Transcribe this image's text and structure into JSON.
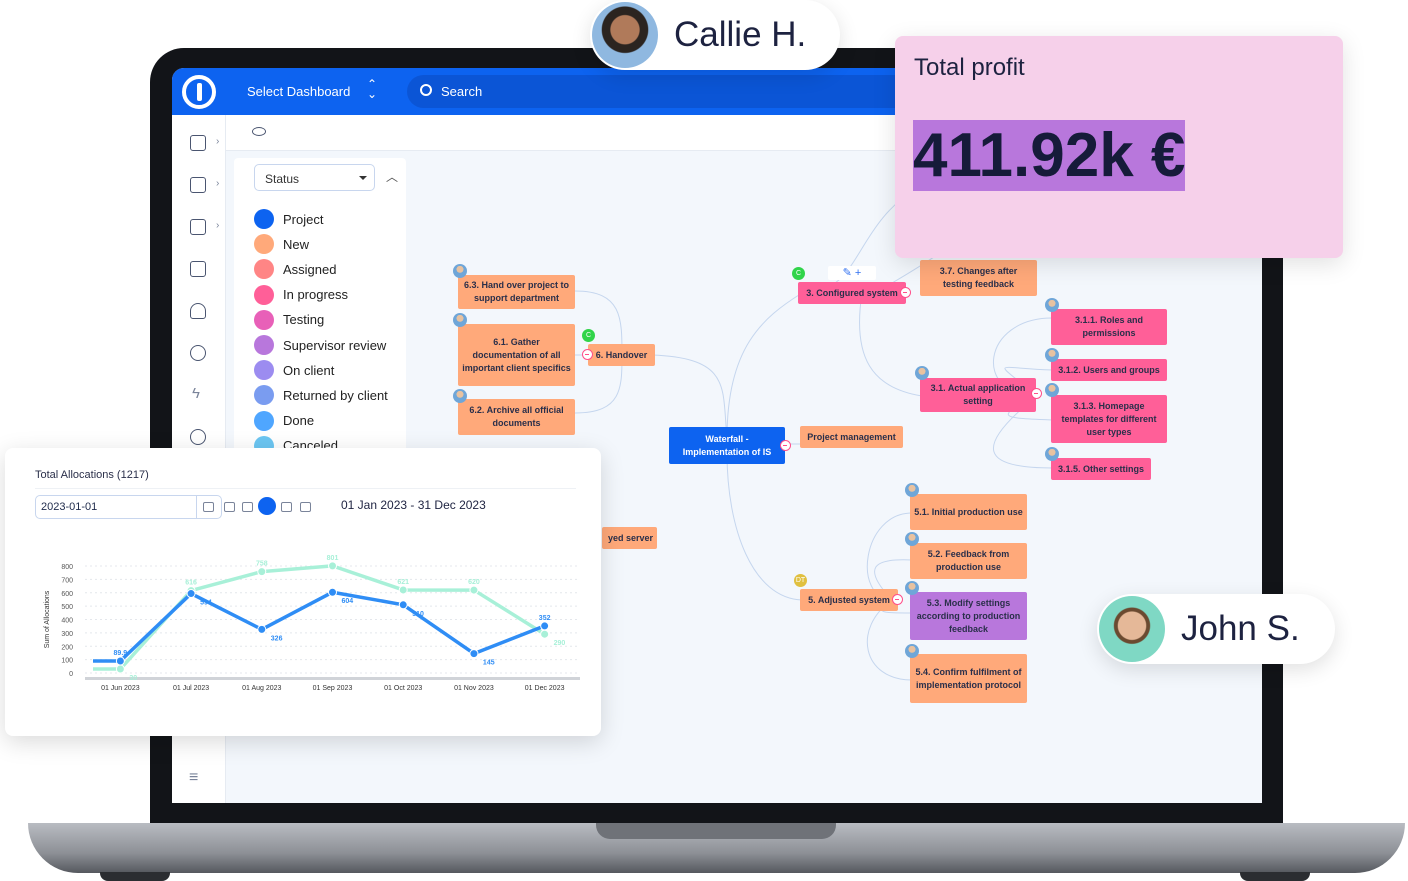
{
  "header": {
    "select_dashboard": "Select Dashboard",
    "search_placeholder": "Search"
  },
  "filter": {
    "select_value": "Status",
    "statuses": [
      {
        "label": "Project",
        "color": "#0d63f0"
      },
      {
        "label": "New",
        "color": "#ffa97a"
      },
      {
        "label": "Assigned",
        "color": "#ff8585"
      },
      {
        "label": "In progress",
        "color": "#ff5f98"
      },
      {
        "label": "Testing",
        "color": "#e860b8"
      },
      {
        "label": "Supervisor review",
        "color": "#b877dc"
      },
      {
        "label": "On client",
        "color": "#9c8cf0"
      },
      {
        "label": "Returned by client",
        "color": "#7a9cf0"
      },
      {
        "label": "Done",
        "color": "#4fa6ff"
      },
      {
        "label": "Canceled",
        "color": "#6cc6f2"
      }
    ]
  },
  "mindmap": {
    "root": "Waterfall - Implementation of IS",
    "pm": "Project management",
    "n63": "6.3. Hand over project to support department",
    "n61": "6.1. Gather documentation of all important client specifics",
    "n62": "6.2. Archive all official documents",
    "n6": "6. Handover",
    "server": "yed server",
    "n3": "3. Configured system",
    "n37": "3.7. Changes after testing feedback",
    "n31": "3.1. Actual application setting",
    "n311": "3.1.1. Roles and permissions",
    "n312": "3.1.2. Users and groups",
    "n313": "3.1.3. Homepage templates for different user types",
    "n315": "3.1.5. Other settings",
    "n5": "5. Adjusted system",
    "n51": "5.1. Initial production use",
    "n52": "5.2. Feedback from production use",
    "n53": "5.3. Modify settings according to production feedback",
    "n54": "5.4. Confirm fulfilment of implementation protocol",
    "badge_c": "C",
    "badge_dt": "DT"
  },
  "profit": {
    "title": "Total profit",
    "value": "411.92k €"
  },
  "users": {
    "callie": "Callie H.",
    "john": "John S."
  },
  "allocations": {
    "title": "Total Allocations (1217)",
    "date_value": "2023-01-01",
    "range": "01 Jan 2023 - 31 Dec 2023"
  },
  "chart_data": {
    "type": "line",
    "ylabel": "Sum of Allocations",
    "ylim": [
      0,
      800
    ],
    "yticks": [
      0,
      100,
      200,
      300,
      400,
      500,
      600,
      700,
      800
    ],
    "categories": [
      "01 Jun 2023",
      "01 Jul 2023",
      "01 Aug 2023",
      "01 Sep 2023",
      "01 Oct 2023",
      "01 Nov 2023",
      "01 Dec 2023"
    ],
    "grid": true,
    "series": [
      {
        "color": "#a8f0d8",
        "values": [
          30,
          616,
          758,
          801,
          621,
          620,
          290
        ]
      },
      {
        "color": "#2f8df5",
        "values": [
          89.9,
          594,
          326,
          604,
          510,
          145,
          352
        ]
      }
    ]
  }
}
